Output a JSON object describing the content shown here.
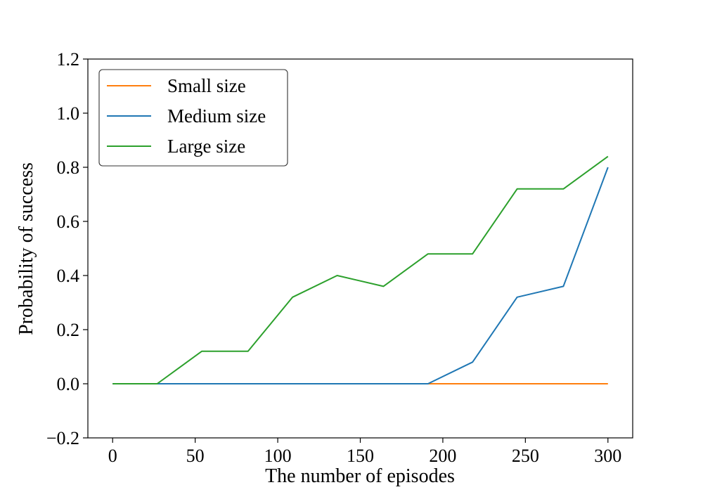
{
  "chart_data": {
    "type": "line",
    "title": "",
    "xlabel": "The number of episodes",
    "ylabel": "Probability of success",
    "xlim": [
      -15,
      315
    ],
    "ylim": [
      -0.2,
      1.2
    ],
    "xticks": [
      0,
      50,
      100,
      150,
      200,
      250,
      300
    ],
    "xtick_labels": [
      "0",
      "50",
      "100",
      "150",
      "200",
      "250",
      "300"
    ],
    "yticks": [
      -0.2,
      0.0,
      0.2,
      0.4,
      0.6,
      0.8,
      1.0,
      1.2
    ],
    "ytick_labels": [
      "−0.2",
      "0.0",
      "0.2",
      "0.4",
      "0.6",
      "0.8",
      "1.0",
      "1.2"
    ],
    "grid": false,
    "legend": "top-left",
    "x": [
      0,
      27,
      54,
      82,
      109,
      136,
      164,
      191,
      218,
      245,
      273,
      300
    ],
    "series": [
      {
        "name": "Small size",
        "color": "#ff7f0e",
        "values": [
          0,
          0,
          0,
          0,
          0,
          0,
          0,
          0,
          0,
          0,
          0,
          0
        ]
      },
      {
        "name": "Medium size",
        "color": "#1f77b4",
        "values": [
          0,
          0,
          0,
          0,
          0,
          0,
          0,
          0,
          0.08,
          0.32,
          0.36,
          0.8
        ]
      },
      {
        "name": "Large size",
        "color": "#2ca02c",
        "values": [
          0,
          0,
          0.12,
          0.12,
          0.32,
          0.4,
          0.36,
          0.48,
          0.48,
          0.72,
          0.72,
          0.84
        ]
      }
    ]
  }
}
